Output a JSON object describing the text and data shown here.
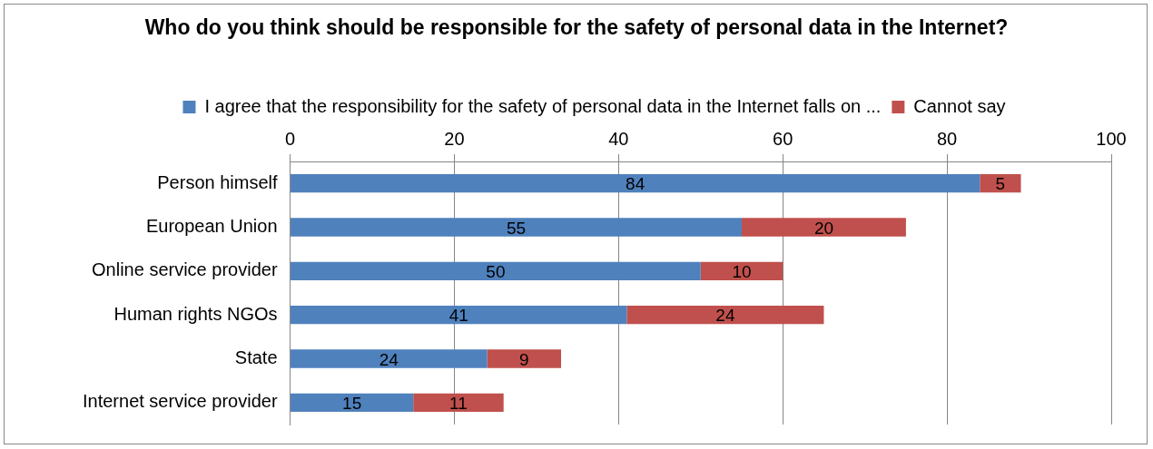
{
  "chart_data": {
    "type": "bar",
    "orientation": "horizontal",
    "stacked": true,
    "title": "Who do you think should be responsible for the safety of personal data in the Internet?",
    "categories": [
      "Person himself",
      "European Union",
      "Online service provider",
      "Human rights NGOs",
      "State",
      "Internet service provider"
    ],
    "series": [
      {
        "name": "I agree that the responsibility for the safety of personal data in the Internet falls on ...",
        "color": "#4f81bd",
        "values": [
          84,
          55,
          50,
          41,
          24,
          15
        ]
      },
      {
        "name": "Cannot say",
        "color": "#c0504d",
        "values": [
          5,
          20,
          10,
          24,
          9,
          11
        ]
      }
    ],
    "xlim": [
      0,
      100
    ],
    "xticks": [
      0,
      20,
      40,
      60,
      80,
      100
    ],
    "grid": "x",
    "legend": "top",
    "data_labels": true
  }
}
